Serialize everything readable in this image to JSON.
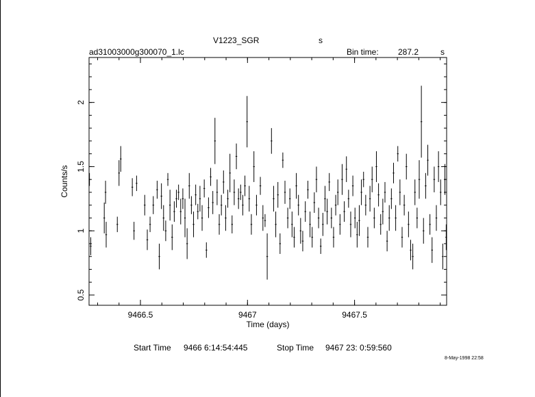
{
  "header": {
    "object": "V1223_SGR",
    "object_unit": "s",
    "filename": "ad31003000g300070_1.lc",
    "bin_time_label": "Bin time:",
    "bin_time_value": "287.2",
    "bin_time_unit": "s"
  },
  "footer": {
    "start_label": "Start Time",
    "start_value": "9466  6:14:54:445",
    "stop_label": "Stop Time",
    "stop_value": "9467 23: 0:59:560",
    "timestamp": "8-May-1998 22:58"
  },
  "chart_data": {
    "type": "scatter",
    "xlabel": "Time (days)",
    "ylabel": "Counts/s",
    "xlim": [
      9466.26,
      9467.93
    ],
    "ylim": [
      0.42,
      2.35
    ],
    "xticks": [
      9466.5,
      9467,
      9467.5
    ],
    "xtick_labels": [
      "9466.5",
      "9467",
      "9467.5"
    ],
    "yticks": [
      0.5,
      1,
      1.5,
      2
    ],
    "ytick_labels": [
      "0.5",
      "1",
      "1.5",
      "2"
    ],
    "error_bars": "vertical",
    "grid": false,
    "points": [
      [
        9466.262,
        1.4,
        0.05
      ],
      [
        9466.268,
        0.88,
        0.07
      ],
      [
        9466.331,
        1.1,
        0.12
      ],
      [
        9466.337,
        1.3,
        0.09
      ],
      [
        9466.34,
        0.97,
        0.1
      ],
      [
        9466.392,
        1.05,
        0.06
      ],
      [
        9466.4,
        1.45,
        0.1
      ],
      [
        9466.408,
        1.56,
        0.1
      ],
      [
        9466.462,
        1.34,
        0.07
      ],
      [
        9466.47,
        1.0,
        0.07
      ],
      [
        9466.482,
        1.37,
        0.06
      ],
      [
        9466.52,
        1.2,
        0.08
      ],
      [
        9466.532,
        0.93,
        0.08
      ],
      [
        9466.545,
        1.05,
        0.06
      ],
      [
        9466.56,
        1.2,
        0.07
      ],
      [
        9466.578,
        1.32,
        0.07
      ],
      [
        9466.588,
        0.8,
        0.1
      ],
      [
        9466.598,
        1.27,
        0.1
      ],
      [
        9466.608,
        1.1,
        0.1
      ],
      [
        9466.618,
        1.0,
        0.08
      ],
      [
        9466.628,
        1.4,
        0.05
      ],
      [
        9466.638,
        1.2,
        0.12
      ],
      [
        9466.648,
        0.95,
        0.1
      ],
      [
        9466.658,
        1.15,
        0.08
      ],
      [
        9466.668,
        1.25,
        0.07
      ],
      [
        9466.678,
        1.3,
        0.06
      ],
      [
        9466.688,
        1.15,
        0.1
      ],
      [
        9466.698,
        1.25,
        0.08
      ],
      [
        9466.708,
        1.1,
        0.15
      ],
      [
        9466.718,
        0.9,
        0.12
      ],
      [
        9466.728,
        1.35,
        0.1
      ],
      [
        9466.738,
        1.2,
        0.07
      ],
      [
        9466.748,
        1.05,
        0.1
      ],
      [
        9466.758,
        1.28,
        0.08
      ],
      [
        9466.768,
        1.15,
        0.06
      ],
      [
        9466.778,
        1.25,
        0.1
      ],
      [
        9466.788,
        1.1,
        0.1
      ],
      [
        9466.798,
        1.33,
        0.07
      ],
      [
        9466.808,
        0.85,
        0.06
      ],
      [
        9466.818,
        1.18,
        0.08
      ],
      [
        9466.828,
        1.42,
        0.07
      ],
      [
        9466.838,
        1.22,
        0.09
      ],
      [
        9466.848,
        1.7,
        0.18
      ],
      [
        9466.858,
        1.3,
        0.1
      ],
      [
        9466.868,
        1.05,
        0.08
      ],
      [
        9466.878,
        1.2,
        0.08
      ],
      [
        9466.888,
        1.38,
        0.09
      ],
      [
        9466.898,
        1.1,
        0.1
      ],
      [
        9466.908,
        1.25,
        0.07
      ],
      [
        9466.918,
        1.45,
        0.15
      ],
      [
        9466.928,
        1.05,
        0.07
      ],
      [
        9466.938,
        1.3,
        0.1
      ],
      [
        9466.948,
        1.58,
        0.1
      ],
      [
        9466.958,
        1.25,
        0.08
      ],
      [
        9466.968,
        1.3,
        0.06
      ],
      [
        9466.978,
        1.2,
        0.08
      ],
      [
        9466.988,
        1.35,
        0.08
      ],
      [
        9466.998,
        1.85,
        0.2
      ],
      [
        9467.008,
        1.25,
        0.1
      ],
      [
        9467.018,
        1.05,
        0.08
      ],
      [
        9467.03,
        1.5,
        0.12
      ],
      [
        9467.042,
        1.2,
        0.08
      ],
      [
        9467.06,
        1.35,
        0.07
      ],
      [
        9467.072,
        1.1,
        0.1
      ],
      [
        9467.082,
        1.08,
        0.05
      ],
      [
        9467.092,
        0.8,
        0.18
      ],
      [
        9467.112,
        1.7,
        0.1
      ],
      [
        9467.122,
        1.25,
        0.1
      ],
      [
        9467.132,
        1.05,
        0.1
      ],
      [
        9467.142,
        1.28,
        0.1
      ],
      [
        9467.152,
        0.9,
        0.08
      ],
      [
        9467.165,
        1.55,
        0.06
      ],
      [
        9467.175,
        1.3,
        0.09
      ],
      [
        9467.188,
        1.1,
        0.08
      ],
      [
        9467.198,
        1.25,
        0.08
      ],
      [
        9467.208,
        1.05,
        0.1
      ],
      [
        9467.218,
        0.95,
        0.08
      ],
      [
        9467.228,
        1.35,
        0.1
      ],
      [
        9467.238,
        1.2,
        0.08
      ],
      [
        9467.248,
        1.0,
        0.1
      ],
      [
        9467.258,
        0.92,
        0.08
      ],
      [
        9467.27,
        1.15,
        0.08
      ],
      [
        9467.282,
        1.32,
        0.07
      ],
      [
        9467.292,
        1.05,
        0.1
      ],
      [
        9467.302,
        0.95,
        0.08
      ],
      [
        9467.312,
        1.22,
        0.08
      ],
      [
        9467.322,
        1.4,
        0.1
      ],
      [
        9467.332,
        1.1,
        0.08
      ],
      [
        9467.342,
        0.88,
        0.06
      ],
      [
        9467.352,
        1.05,
        0.09
      ],
      [
        9467.362,
        1.25,
        0.1
      ],
      [
        9467.372,
        1.15,
        0.1
      ],
      [
        9467.382,
        1.38,
        0.07
      ],
      [
        9467.392,
        1.1,
        0.08
      ],
      [
        9467.402,
        0.95,
        0.08
      ],
      [
        9467.412,
        1.2,
        0.08
      ],
      [
        9467.422,
        1.3,
        0.1
      ],
      [
        9467.432,
        1.05,
        0.08
      ],
      [
        9467.442,
        1.4,
        0.12
      ],
      [
        9467.452,
        1.15,
        0.08
      ],
      [
        9467.462,
        1.48,
        0.1
      ],
      [
        9467.472,
        1.25,
        0.07
      ],
      [
        9467.482,
        1.05,
        0.1
      ],
      [
        9467.492,
        1.35,
        0.08
      ],
      [
        9467.502,
        1.1,
        0.08
      ],
      [
        9467.512,
        0.97,
        0.1
      ],
      [
        9467.522,
        1.08,
        0.12
      ],
      [
        9467.532,
        1.3,
        0.1
      ],
      [
        9467.542,
        1.4,
        0.06
      ],
      [
        9467.552,
        1.2,
        0.08
      ],
      [
        9467.562,
        0.95,
        0.08
      ],
      [
        9467.572,
        1.25,
        0.1
      ],
      [
        9467.582,
        1.4,
        0.1
      ],
      [
        9467.592,
        1.1,
        0.08
      ],
      [
        9467.602,
        1.5,
        0.12
      ],
      [
        9467.612,
        1.28,
        0.09
      ],
      [
        9467.622,
        1.05,
        0.08
      ],
      [
        9467.632,
        1.15,
        0.1
      ],
      [
        9467.642,
        1.3,
        0.08
      ],
      [
        9467.652,
        0.92,
        0.08
      ],
      [
        9467.662,
        1.1,
        0.1
      ],
      [
        9467.672,
        1.25,
        0.08
      ],
      [
        9467.682,
        1.45,
        0.08
      ],
      [
        9467.692,
        1.1,
        0.1
      ],
      [
        9467.702,
        1.6,
        0.06
      ],
      [
        9467.712,
        1.3,
        0.1
      ],
      [
        9467.722,
        0.95,
        0.08
      ],
      [
        9467.732,
        1.2,
        0.08
      ],
      [
        9467.742,
        1.5,
        0.1
      ],
      [
        9467.752,
        1.05,
        0.1
      ],
      [
        9467.762,
        0.85,
        0.08
      ],
      [
        9467.772,
        0.8,
        0.1
      ],
      [
        9467.782,
        1.3,
        0.1
      ],
      [
        9467.792,
        1.1,
        0.08
      ],
      [
        9467.802,
        1.4,
        0.15
      ],
      [
        9467.812,
        1.85,
        0.28
      ],
      [
        9467.822,
        1.0,
        0.1
      ],
      [
        9467.832,
        1.35,
        0.1
      ],
      [
        9467.842,
        1.55,
        0.12
      ],
      [
        9467.852,
        1.05,
        0.08
      ],
      [
        9467.862,
        0.85,
        0.1
      ],
      [
        9467.872,
        1.4,
        0.1
      ],
      [
        9467.882,
        1.1,
        0.1
      ],
      [
        9467.892,
        1.5,
        0.12
      ],
      [
        9467.902,
        1.3,
        0.1
      ],
      [
        9467.912,
        0.8,
        0.1
      ],
      [
        9467.922,
        1.4,
        0.12
      ],
      [
        9467.928,
        0.95,
        0.1
      ]
    ]
  }
}
